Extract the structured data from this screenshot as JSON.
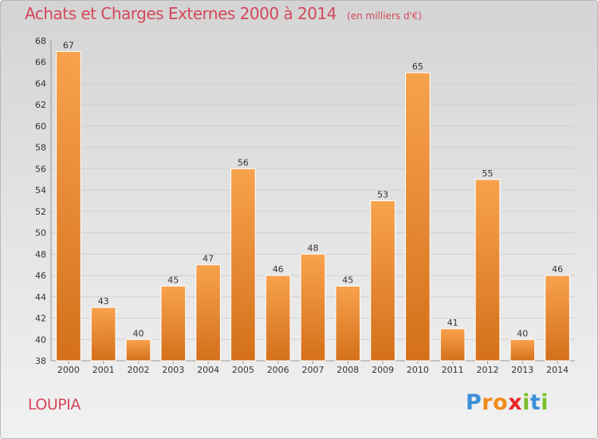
{
  "header": {
    "title": "Achats et Charges Externes 2000 à 2014",
    "unit": "(en milliers d'€)"
  },
  "footer": {
    "place": "LOUPIA",
    "brand": "Proxiti",
    "brand_letters": [
      "P",
      "r",
      "o",
      "x",
      "i",
      "t",
      "i"
    ],
    "brand_colors": [
      "#3a8fd6",
      "#f08a1c",
      "#f08a1c",
      "#e8262c",
      "#7bbf2a",
      "#3a8fd6",
      "#7bbf2a"
    ]
  },
  "colors": {
    "bar_light": "#f8a24e",
    "bar_dark": "#d4701a",
    "bar_edge": "#ffffff",
    "grid": "#d0d0d0",
    "title": "#d4485c"
  },
  "chart_data": {
    "type": "bar",
    "title": "Achats et Charges Externes 2000 à 2014",
    "xlabel": "",
    "ylabel": "",
    "categories": [
      "2000",
      "2001",
      "2002",
      "2003",
      "2004",
      "2005",
      "2006",
      "2007",
      "2008",
      "2009",
      "2010",
      "2011",
      "2012",
      "2013",
      "2014"
    ],
    "values": [
      67,
      43,
      40,
      45,
      47,
      56,
      46,
      48,
      45,
      53,
      65,
      41,
      55,
      40,
      46
    ],
    "ylim": [
      38,
      68
    ],
    "yticks": [
      38,
      40,
      42,
      44,
      46,
      48,
      50,
      52,
      54,
      56,
      58,
      60,
      62,
      64,
      66,
      68
    ],
    "grid": true,
    "data_labels": true
  }
}
